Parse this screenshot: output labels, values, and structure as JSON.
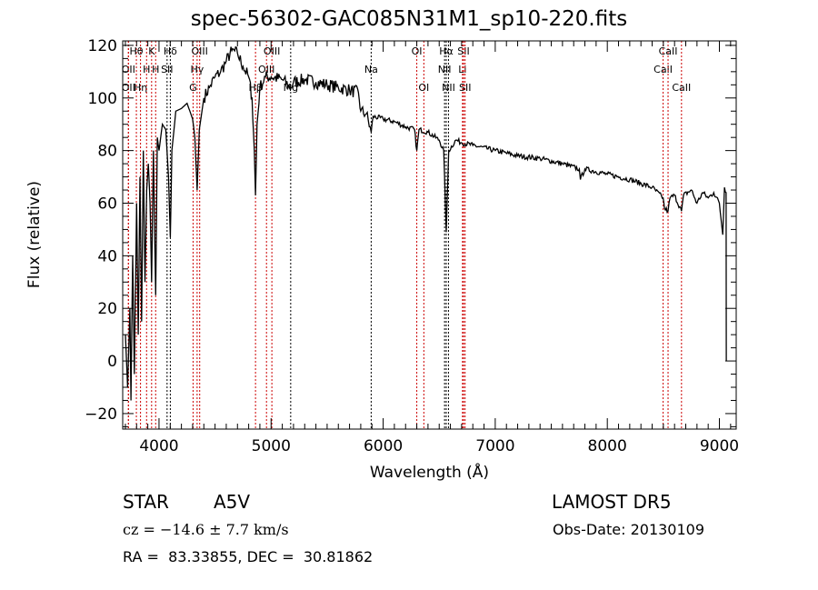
{
  "chart_data": {
    "type": "line",
    "title": "spec-56302-GAC085N31M1_sp10-220.fits",
    "xlabel": "Wavelength (Å)",
    "ylabel": "Flux (relative)",
    "xlim": [
      3676,
      9150
    ],
    "ylim": [
      -25.9,
      121.7
    ],
    "xticks": [
      4000,
      5000,
      6000,
      7000,
      8000,
      9000
    ],
    "yticks": [
      -20,
      0,
      20,
      40,
      60,
      80,
      100,
      120
    ],
    "grid": false,
    "series": [
      {
        "name": "spectrum",
        "points": [
          [
            3700,
            10
          ],
          [
            3720,
            -10
          ],
          [
            3740,
            20
          ],
          [
            3750,
            -15
          ],
          [
            3765,
            40
          ],
          [
            3780,
            -5
          ],
          [
            3800,
            60
          ],
          [
            3815,
            10
          ],
          [
            3830,
            70
          ],
          [
            3845,
            15
          ],
          [
            3860,
            80
          ],
          [
            3875,
            30
          ],
          [
            3890,
            65
          ],
          [
            3905,
            75
          ],
          [
            3920,
            60
          ],
          [
            3934,
            30
          ],
          [
            3950,
            80
          ],
          [
            3970,
            25
          ],
          [
            3985,
            85
          ],
          [
            4000,
            80
          ],
          [
            4030,
            90
          ],
          [
            4060,
            88
          ],
          [
            4085,
            70
          ],
          [
            4101,
            47
          ],
          [
            4115,
            80
          ],
          [
            4150,
            95
          ],
          [
            4200,
            96
          ],
          [
            4250,
            98
          ],
          [
            4300,
            92
          ],
          [
            4320,
            85
          ],
          [
            4340,
            65
          ],
          [
            4360,
            88
          ],
          [
            4400,
            100
          ],
          [
            4450,
            104
          ],
          [
            4500,
            108
          ],
          [
            4550,
            110
          ],
          [
            4600,
            114
          ],
          [
            4650,
            118
          ],
          [
            4700,
            117
          ],
          [
            4750,
            112
          ],
          [
            4800,
            108
          ],
          [
            4830,
            100
          ],
          [
            4850,
            80
          ],
          [
            4861,
            63
          ],
          [
            4875,
            90
          ],
          [
            4900,
            104
          ],
          [
            4950,
            108
          ],
          [
            5000,
            108
          ],
          [
            5100,
            107
          ],
          [
            5175,
            104
          ],
          [
            5200,
            106
          ],
          [
            5300,
            107
          ],
          [
            5400,
            106
          ],
          [
            5500,
            105
          ],
          [
            5600,
            104
          ],
          [
            5700,
            103
          ],
          [
            5780,
            102
          ],
          [
            5800,
            95
          ],
          [
            5850,
            94
          ],
          [
            5893,
            87
          ],
          [
            5910,
            93
          ],
          [
            6000,
            92
          ],
          [
            6100,
            91
          ],
          [
            6200,
            89
          ],
          [
            6280,
            88
          ],
          [
            6300,
            80
          ],
          [
            6320,
            88
          ],
          [
            6400,
            87
          ],
          [
            6500,
            84
          ],
          [
            6540,
            80
          ],
          [
            6563,
            49
          ],
          [
            6585,
            80
          ],
          [
            6650,
            84
          ],
          [
            6700,
            83
          ],
          [
            6800,
            82
          ],
          [
            7000,
            80
          ],
          [
            7200,
            78
          ],
          [
            7400,
            77
          ],
          [
            7600,
            75
          ],
          [
            7750,
            73
          ],
          [
            7760,
            69
          ],
          [
            7800,
            73
          ],
          [
            8000,
            71
          ],
          [
            8200,
            69
          ],
          [
            8400,
            66
          ],
          [
            8498,
            62
          ],
          [
            8510,
            58
          ],
          [
            8542,
            57
          ],
          [
            8560,
            62
          ],
          [
            8600,
            63
          ],
          [
            8662,
            57
          ],
          [
            8680,
            63
          ],
          [
            8750,
            65
          ],
          [
            8800,
            60
          ],
          [
            8850,
            64
          ],
          [
            8900,
            62
          ],
          [
            8950,
            64
          ],
          [
            9000,
            60
          ],
          [
            9030,
            48
          ],
          [
            9045,
            66
          ],
          [
            9060,
            64
          ],
          [
            9062,
            0
          ]
        ]
      }
    ],
    "lines": [
      {
        "wl": 3727,
        "label": "OII",
        "row": 2,
        "color": "#cc0000"
      },
      {
        "wl": 3727,
        "label": "OII",
        "row": 3,
        "color": "#cc0000"
      },
      {
        "wl": 3798,
        "label": "Hθ",
        "row": 1,
        "color": "#cc0000"
      },
      {
        "wl": 3835,
        "label": "Hη",
        "row": 3,
        "color": "#cc0000"
      },
      {
        "wl": 3889,
        "label": "H",
        "row": 2,
        "color": "#cc0000"
      },
      {
        "wl": 3934,
        "label": "K",
        "row": 1,
        "color": "#cc0000"
      },
      {
        "wl": 3970,
        "label": "H",
        "row": 2,
        "color": "#cc0000"
      },
      {
        "wl": 4101,
        "label": "Hδ",
        "row": 1,
        "color": "#000000"
      },
      {
        "wl": 4072,
        "label": "SII",
        "row": 2,
        "color": "#000000"
      },
      {
        "wl": 4304,
        "label": "G",
        "row": 3,
        "color": "#cc0000"
      },
      {
        "wl": 4340,
        "label": "Hγ",
        "row": 2,
        "color": "#cc0000"
      },
      {
        "wl": 4363,
        "label": "OIII",
        "row": 1,
        "color": "#cc0000"
      },
      {
        "wl": 4861,
        "label": "Hβ",
        "row": 3,
        "color": "#cc0000"
      },
      {
        "wl": 4959,
        "label": "OIII",
        "row": 2,
        "color": "#cc0000"
      },
      {
        "wl": 5007,
        "label": "OIII",
        "row": 1,
        "color": "#cc0000"
      },
      {
        "wl": 5175,
        "label": "Mg",
        "row": 3,
        "color": "#000000"
      },
      {
        "wl": 5893,
        "label": "Na",
        "row": 2,
        "color": "#000000"
      },
      {
        "wl": 6300,
        "label": "OI",
        "row": 1,
        "color": "#cc0000"
      },
      {
        "wl": 6363,
        "label": "OI",
        "row": 3,
        "color": "#cc0000"
      },
      {
        "wl": 6548,
        "label": "NII",
        "row": 2,
        "color": "#000000"
      },
      {
        "wl": 6563,
        "label": "Hα",
        "row": 1,
        "color": "#000000"
      },
      {
        "wl": 6583,
        "label": "NII",
        "row": 3,
        "color": "#000000"
      },
      {
        "wl": 6708,
        "label": "Li",
        "row": 2,
        "color": "#cc0000"
      },
      {
        "wl": 6717,
        "label": "SII",
        "row": 1,
        "color": "#cc0000"
      },
      {
        "wl": 6731,
        "label": "SII",
        "row": 3,
        "color": "#cc0000"
      },
      {
        "wl": 8498,
        "label": "CaII",
        "row": 2,
        "color": "#cc0000"
      },
      {
        "wl": 8542,
        "label": "CaII",
        "row": 1,
        "color": "#cc0000"
      },
      {
        "wl": 8662,
        "label": "CaII",
        "row": 3,
        "color": "#cc0000"
      }
    ]
  },
  "info": {
    "object": "STAR",
    "subclass": "A5V",
    "survey": "LAMOST DR5",
    "cz": "cz = −14.6 ± 7.7 km/s",
    "obs_date": "Obs-Date: 20130109",
    "coords": "RA =  83.33855, DEC =  30.81862"
  }
}
